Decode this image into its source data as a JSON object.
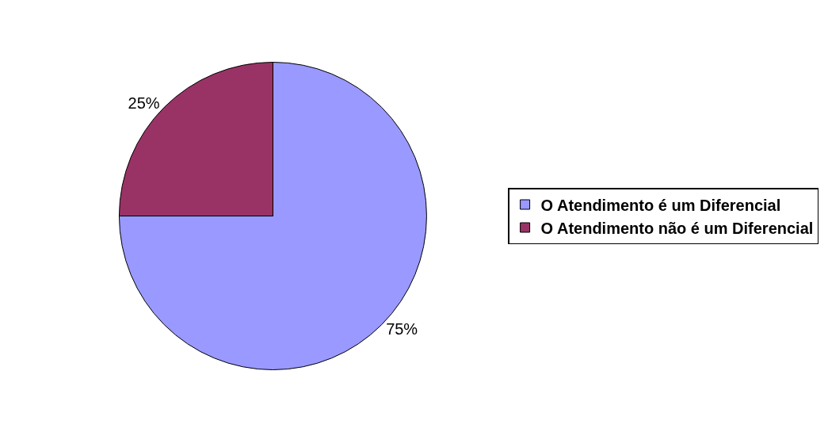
{
  "chart_data": {
    "type": "pie",
    "categories": [
      "O Atendimento é um Diferencial",
      "O Atendimento não é um Diferencial"
    ],
    "values": [
      75,
      25
    ],
    "value_labels": [
      "75%",
      "25%"
    ],
    "colors": [
      "#9999ff",
      "#993366"
    ],
    "legend": "right"
  }
}
